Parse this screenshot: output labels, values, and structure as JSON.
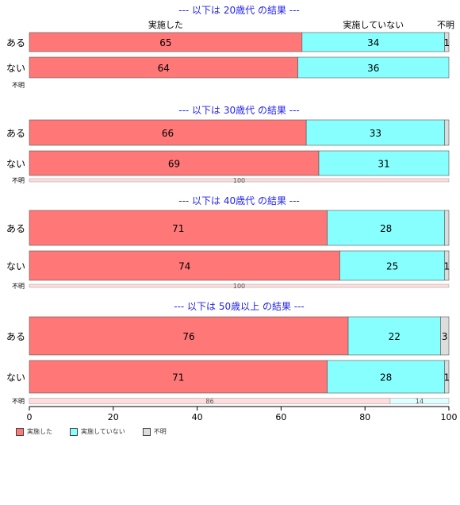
{
  "chart_data": {
    "type": "bar",
    "orientation": "horizontal",
    "stacked": true,
    "xlim": [
      0,
      100
    ],
    "xticks": [
      "0",
      "20",
      "40",
      "60",
      "80",
      "100"
    ],
    "colors": {
      "実施した": "#ff7777",
      "実施していない": "#88ffff",
      "不明": "#dddddd"
    },
    "minor_colors": {
      "実施した": "#ffdddd",
      "実施していない": "#ddffff"
    },
    "series_names": [
      "実施した",
      "実施していない",
      "不明"
    ],
    "panels": [
      {
        "title": "--- 以下は 20歳代 の結果 ---",
        "show_header": true,
        "rows": [
          {
            "label": "ある",
            "values": [
              65,
              34,
              1
            ],
            "value_labels": [
              "65",
              "34",
              "1"
            ]
          },
          {
            "label": "ない",
            "values": [
              64,
              36,
              0
            ],
            "value_labels": [
              "64",
              "36",
              ""
            ]
          }
        ],
        "minor": {
          "label": "不明",
          "values": [
            0,
            0,
            0
          ],
          "value_labels": [
            "",
            "",
            ""
          ]
        }
      },
      {
        "title": "--- 以下は 30歳代 の結果 ---",
        "show_header": false,
        "rows": [
          {
            "label": "ある",
            "values": [
              66,
              33,
              1
            ],
            "value_labels": [
              "66",
              "33",
              ""
            ]
          },
          {
            "label": "ない",
            "values": [
              69,
              31,
              0
            ],
            "value_labels": [
              "69",
              "31",
              ""
            ]
          }
        ],
        "minor": {
          "label": "不明",
          "values": [
            100,
            0,
            0
          ],
          "value_labels": [
            "100",
            "",
            ""
          ]
        }
      },
      {
        "title": "--- 以下は 40歳代 の結果 ---",
        "show_header": false,
        "rows": [
          {
            "label": "ある",
            "values": [
              71,
              28,
              1
            ],
            "value_labels": [
              "71",
              "28",
              ""
            ]
          },
          {
            "label": "ない",
            "values": [
              74,
              25,
              1
            ],
            "value_labels": [
              "74",
              "25",
              "1"
            ]
          }
        ],
        "minor": {
          "label": "不明",
          "values": [
            100,
            0,
            0
          ],
          "value_labels": [
            "100",
            "",
            ""
          ]
        }
      },
      {
        "title": "--- 以下は 50歳以上 の結果 ---",
        "show_header": false,
        "rows": [
          {
            "label": "ある",
            "values": [
              76,
              22,
              3
            ],
            "value_labels": [
              "76",
              "22",
              "3"
            ]
          },
          {
            "label": "ない",
            "values": [
              71,
              28,
              1
            ],
            "value_labels": [
              "71",
              "28",
              "1"
            ]
          }
        ],
        "minor": {
          "label": "不明",
          "values": [
            86,
            14,
            0
          ],
          "value_labels": [
            "86",
            "14",
            ""
          ]
        }
      }
    ],
    "legend": [
      "実施した",
      "実施していない",
      "不明"
    ],
    "legend_position": "bottom-left",
    "title_color": "#2222ee"
  }
}
